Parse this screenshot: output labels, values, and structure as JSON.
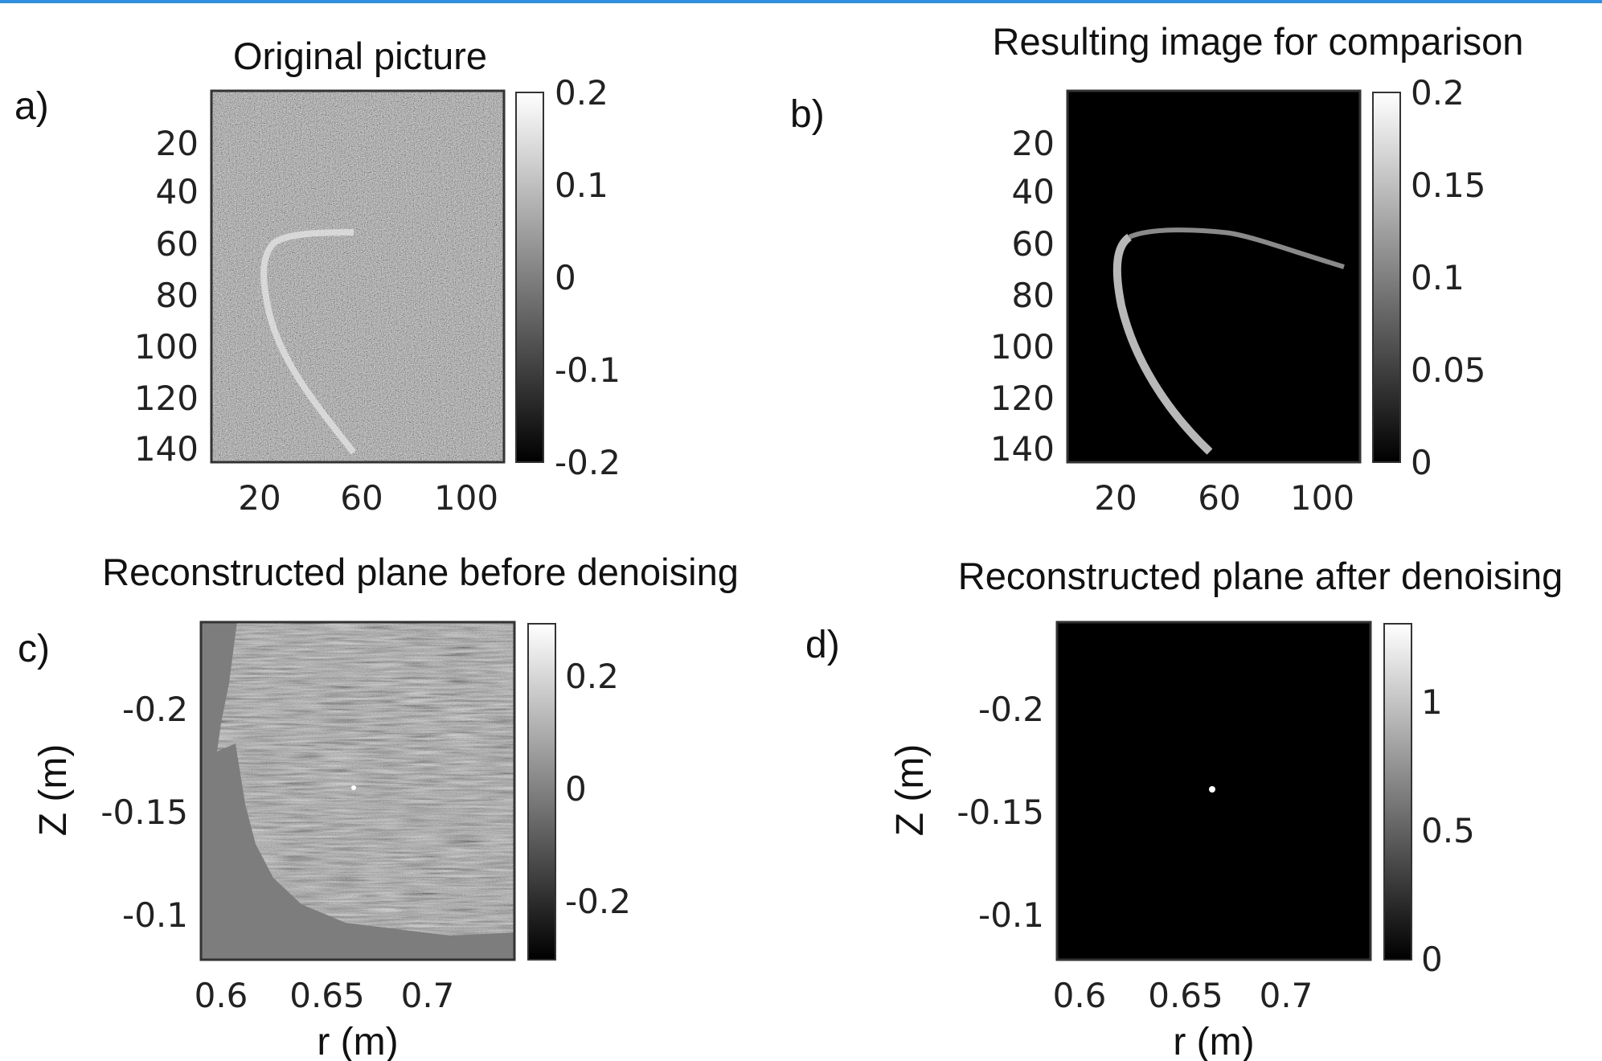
{
  "colors": {
    "top_bar": "#2f8fe0"
  },
  "panels": [
    {
      "id": "a",
      "panel_label": "a)",
      "title": "Original picture",
      "y_ticks": [
        "20",
        "40",
        "60",
        "80",
        "100",
        "120",
        "140"
      ],
      "x_ticks": [
        "20",
        "60",
        "100"
      ],
      "xlabel": "",
      "ylabel": "",
      "colorbar_ticks": [
        "0.2",
        "0.1",
        "0",
        "-0.1",
        "-0.2"
      ]
    },
    {
      "id": "b",
      "panel_label": "b)",
      "title": "Resulting image for comparison",
      "y_ticks": [
        "20",
        "40",
        "60",
        "80",
        "100",
        "120",
        "140"
      ],
      "x_ticks": [
        "20",
        "60",
        "100"
      ],
      "xlabel": "",
      "ylabel": "",
      "colorbar_ticks": [
        "0.2",
        "0.15",
        "0.1",
        "0.05",
        "0"
      ]
    },
    {
      "id": "c",
      "panel_label": "c)",
      "title": "Reconstructed plane before denoising",
      "y_ticks": [
        "-0.2",
        "-0.15",
        "-0.1"
      ],
      "x_ticks": [
        "0.6",
        "0.65",
        "0.7"
      ],
      "xlabel": "r (m)",
      "ylabel": "Z (m)",
      "colorbar_ticks": [
        "0.2",
        "0",
        "-0.2"
      ]
    },
    {
      "id": "d",
      "panel_label": "d)",
      "title": "Reconstructed plane after denoising",
      "y_ticks": [
        "-0.2",
        "-0.15",
        "-0.1"
      ],
      "x_ticks": [
        "0.6",
        "0.65",
        "0.7"
      ],
      "xlabel": "r (m)",
      "ylabel": "Z (m)",
      "colorbar_ticks": [
        "1",
        "0.5",
        "0"
      ]
    }
  ],
  "chart_data": [
    {
      "type": "heatmap",
      "title": "Original picture",
      "colormap": "gray",
      "x_ticks": [
        20,
        60,
        100
      ],
      "y_ticks": [
        20,
        40,
        60,
        80,
        100,
        120,
        140
      ],
      "xlim": [
        0,
        115
      ],
      "ylim": [
        145,
        0
      ],
      "clim": [
        -0.2,
        0.2
      ],
      "colorbar_ticks": [
        0.2,
        0.1,
        0,
        -0.1,
        -0.2
      ],
      "content": "noisy gray field with a faint bright curved arc",
      "arc": {
        "x": [
          55,
          35,
          24,
          21,
          26,
          38,
          56
        ],
        "y": [
          56,
          56,
          62,
          75,
          100,
          125,
          142
        ]
      }
    },
    {
      "type": "heatmap",
      "title": "Resulting image for comparison",
      "colormap": "gray",
      "x_ticks": [
        20,
        60,
        100
      ],
      "y_ticks": [
        20,
        40,
        60,
        80,
        100,
        120,
        140
      ],
      "xlim": [
        0,
        115
      ],
      "ylim": [
        145,
        0
      ],
      "clim": [
        0,
        0.2
      ],
      "colorbar_ticks": [
        0.2,
        0.15,
        0.1,
        0.05,
        0
      ],
      "content": "black background with a bright curved arc",
      "arc": {
        "x": [
          110,
          75,
          45,
          30,
          23,
          21,
          26,
          40,
          56
        ],
        "y": [
          68,
          58,
          55,
          57,
          62,
          75,
          100,
          125,
          140
        ]
      }
    },
    {
      "type": "heatmap",
      "title": "Reconstructed plane before denoising",
      "colormap": "gray",
      "xlabel": "r (m)",
      "ylabel": "Z (m)",
      "x_ticks": [
        0.6,
        0.65,
        0.7
      ],
      "y_ticks": [
        -0.2,
        -0.15,
        -0.1
      ],
      "xlim": [
        0.59,
        0.745
      ],
      "ylim": [
        -0.24,
        -0.077
      ],
      "clim": [
        -0.27,
        0.27
      ],
      "colorbar_ticks": [
        0.2,
        0,
        -0.2
      ],
      "content": "noisy reconstruction inside a hexagonal region, bright point near (0.665, -0.16)"
    },
    {
      "type": "heatmap",
      "title": "Reconstructed plane after denoising",
      "colormap": "gray",
      "xlabel": "r (m)",
      "ylabel": "Z (m)",
      "x_ticks": [
        0.6,
        0.65,
        0.7
      ],
      "y_ticks": [
        -0.2,
        -0.15,
        -0.1
      ],
      "xlim": [
        0.59,
        0.745
      ],
      "ylim": [
        -0.24,
        -0.077
      ],
      "clim": [
        0,
        1.25
      ],
      "colorbar_ticks": [
        1,
        0.5,
        0
      ],
      "content": "black background with a single bright point",
      "point": {
        "r": 0.665,
        "z": -0.16
      }
    }
  ]
}
